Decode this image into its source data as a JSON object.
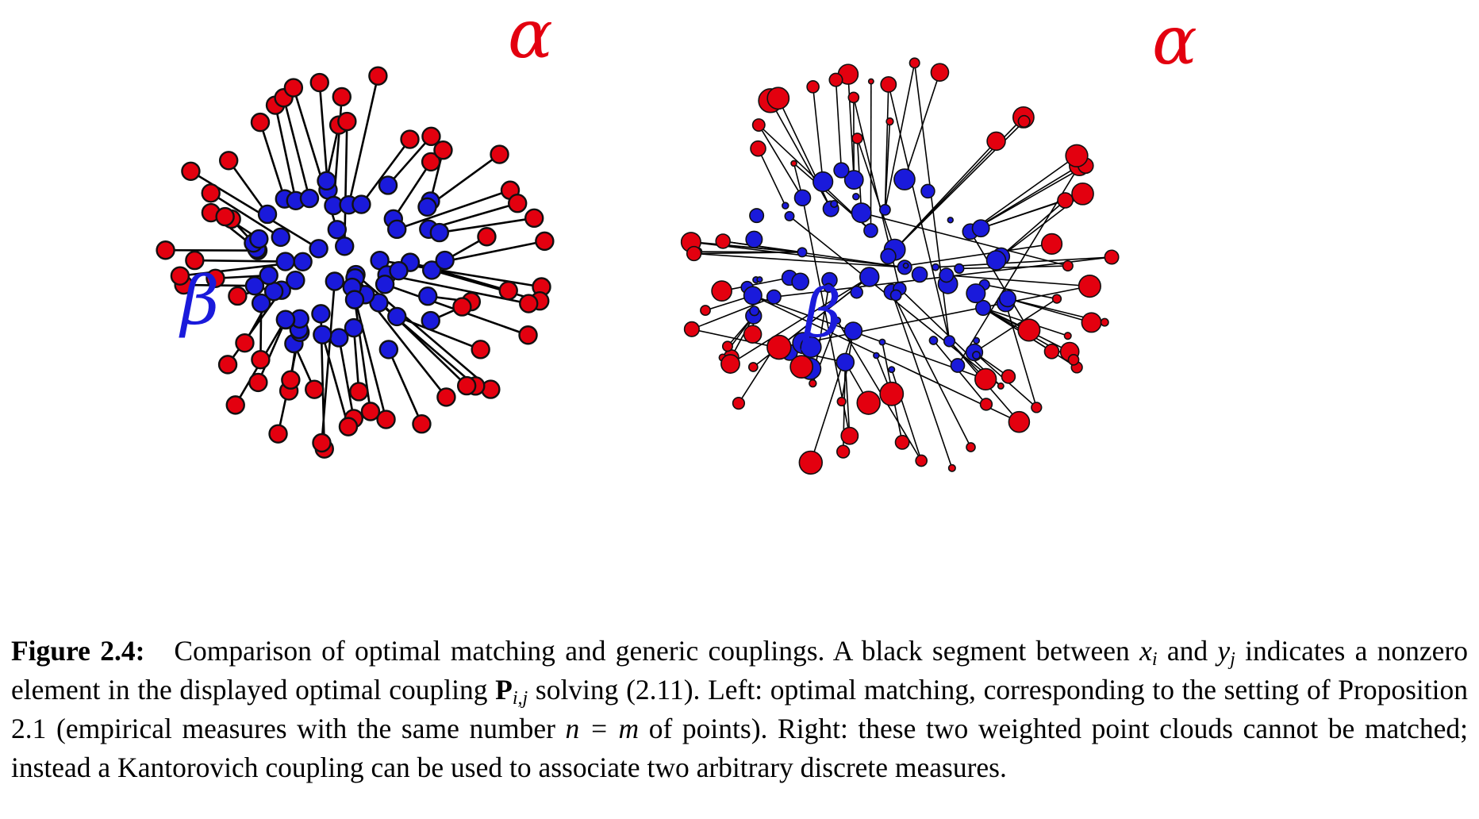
{
  "figure": {
    "panels": [
      {
        "id": "left",
        "alpha_label": "α",
        "beta_label": "β",
        "seed": 11,
        "n_points": 60,
        "weighted": false
      },
      {
        "id": "right",
        "alpha_label": "α",
        "beta_label": "β",
        "seed": 23,
        "n_points": 70,
        "weighted": true
      }
    ],
    "colors": {
      "alpha": "#e3000f",
      "beta": "#1a1adb",
      "segment": "#000000",
      "outline": "#111111"
    }
  },
  "caption": {
    "label": "Figure 2.4:",
    "text_1": "Comparison of optimal matching and generic couplings. A black segment between ",
    "x_sym": "x",
    "x_sub": "i",
    "text_2": " and ",
    "y_sym": "y",
    "y_sub": "j",
    "text_3": " indicates a nonzero element in the displayed optimal coupling ",
    "P_sym": "P",
    "P_sub": "i,j",
    "text_4": " solving (2.11). Left: optimal matching, corresponding to the setting of Proposition 2.1 (empirical measures with the same number ",
    "n_eq_m": "n = m",
    "text_5": " of points). Right: these two weighted point clouds cannot be matched; instead a Kantorovich coupling can be used to associate two arbitrary discrete measures."
  }
}
